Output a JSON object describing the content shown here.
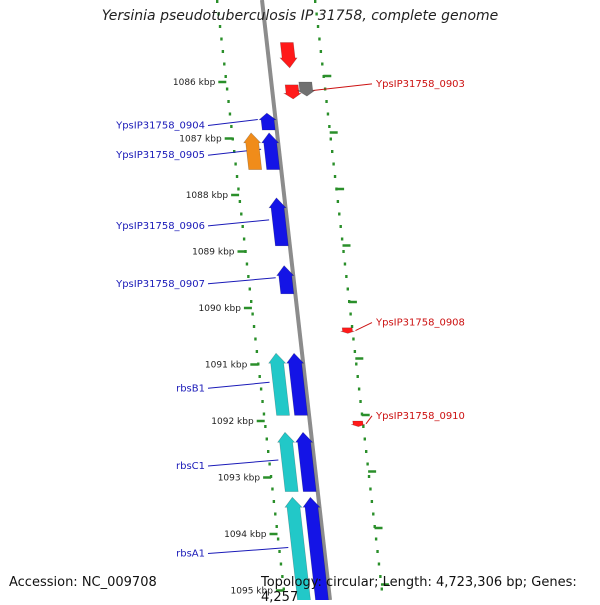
{
  "title": "Yersinia pseudotuberculosis IP 31758, complete genome",
  "footer": {
    "accession": "Accession: NC_009708",
    "topology": "Topology: circular; Length: 4,723,306 bp; Genes: 4,257"
  },
  "colors": {
    "backbone": "#8c8c8c",
    "tick_dots": "#2a8f2a",
    "forward_gene": "#ff1a1a",
    "forward_gene_other": "#707070",
    "reverse_gene": "#1414e6",
    "reverse_gene_label": "#1a1ab8",
    "forward_label": "#cc1111",
    "rna_or_other": "#22c8c8",
    "orange_gene": "#f08c1a"
  },
  "scale": {
    "unit": "kbp",
    "ticks": [
      {
        "value": 1086,
        "label": "1086 kbp"
      },
      {
        "value": 1087,
        "label": "1087 kbp"
      },
      {
        "value": 1088,
        "label": "1088 kbp"
      },
      {
        "value": 1089,
        "label": "1089 kbp"
      },
      {
        "value": 1090,
        "label": "1090 kbp"
      },
      {
        "value": 1091,
        "label": "1091 kbp"
      },
      {
        "value": 1092,
        "label": "1092 kbp"
      },
      {
        "value": 1093,
        "label": "1093 kbp"
      },
      {
        "value": 1094,
        "label": "1094 kbp"
      },
      {
        "value": 1095,
        "label": "1095 kbp"
      }
    ]
  },
  "genes": [
    {
      "label": "",
      "strand": "forward",
      "color": "forward_gene",
      "start_kbp": 1085.3,
      "end_kbp": 1085.75
    },
    {
      "label": "YpsIP31758_0903",
      "strand": "forward",
      "color": "forward_gene",
      "start_kbp": 1086.05,
      "end_kbp": 1086.3
    },
    {
      "label": "",
      "strand": "forward",
      "color": "forward_gene_other",
      "start_kbp": 1086.0,
      "end_kbp": 1086.25
    },
    {
      "label": "YpsIP31758_0904",
      "strand": "reverse",
      "color": "reverse_gene",
      "start_kbp": 1086.55,
      "end_kbp": 1086.85
    },
    {
      "label": "YpsIP31758_0905",
      "strand": "reverse",
      "color": "reverse_gene",
      "start_kbp": 1086.9,
      "end_kbp": 1087.55
    },
    {
      "label": "",
      "strand": "reverse",
      "color": "orange_gene",
      "start_kbp": 1086.9,
      "end_kbp": 1087.55
    },
    {
      "label": "YpsIP31758_0906",
      "strand": "reverse",
      "color": "reverse_gene",
      "start_kbp": 1088.05,
      "end_kbp": 1088.9
    },
    {
      "label": "YpsIP31758_0907",
      "strand": "reverse",
      "color": "reverse_gene",
      "start_kbp": 1089.25,
      "end_kbp": 1089.75
    },
    {
      "label": "YpsIP31758_0908",
      "strand": "forward",
      "color": "forward_gene",
      "start_kbp": 1090.35,
      "end_kbp": 1090.45
    },
    {
      "label": "rbsB1",
      "strand": "reverse",
      "color": "rna_or_other",
      "start_kbp": 1090.8,
      "end_kbp": 1091.9
    },
    {
      "label": "",
      "strand": "reverse",
      "color": "reverse_gene",
      "start_kbp": 1090.8,
      "end_kbp": 1091.9
    },
    {
      "label": "YpsIP31758_0910",
      "strand": "forward",
      "color": "forward_gene",
      "start_kbp": 1092.0,
      "end_kbp": 1092.1
    },
    {
      "label": "rbsC1",
      "strand": "reverse",
      "color": "rna_or_other",
      "start_kbp": 1092.2,
      "end_kbp": 1093.25
    },
    {
      "label": "",
      "strand": "reverse",
      "color": "reverse_gene",
      "start_kbp": 1092.2,
      "end_kbp": 1093.25
    },
    {
      "label": "rbsA1",
      "strand": "reverse",
      "color": "rna_or_other",
      "start_kbp": 1093.35,
      "end_kbp": 1095.2
    },
    {
      "label": "",
      "strand": "reverse",
      "color": "reverse_gene",
      "start_kbp": 1093.35,
      "end_kbp": 1095.2
    }
  ]
}
